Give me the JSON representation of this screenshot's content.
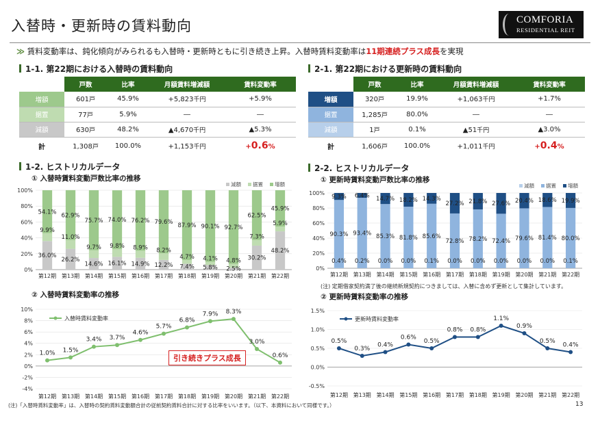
{
  "title": "入替時・更新時の賃料動向",
  "logo": {
    "line1": "COMFORIA",
    "line2": "RESIDENTIAL REIT"
  },
  "summary": {
    "prefix": "賃料変動率は、鈍化傾向がみられるも入替時・更新時ともに引き続き上昇。入替時賃料変動率は",
    "highlight": "11期連続プラス成長",
    "suffix": "を実現"
  },
  "left": {
    "table_title": "1-1. 第22期における入替時の賃料動向",
    "headers": [
      "戸数",
      "比率",
      "月額賃料増減額",
      "賃料変動率"
    ],
    "rows": [
      {
        "label": "増額",
        "units": "601",
        "unit_suffix": "戸",
        "ratio": "45.9%",
        "amount": "+5,823",
        "amount_suffix": "千円",
        "rate": "+5.9%"
      },
      {
        "label": "据置",
        "units": "77",
        "unit_suffix": "戸",
        "ratio": "5.9%",
        "amount": "―",
        "amount_suffix": "",
        "rate": "―"
      },
      {
        "label": "減額",
        "units": "630",
        "unit_suffix": "戸",
        "ratio": "48.2%",
        "amount": "▲4,670",
        "amount_suffix": "千円",
        "rate": "▲5.3%"
      }
    ],
    "total": {
      "label": "計",
      "units": "1,308",
      "unit_suffix": "戸",
      "ratio": "100.0%",
      "amount": "+1,153",
      "amount_suffix": "千円",
      "rate_sign": "+",
      "rate_num": "0.6",
      "rate_pct": "%"
    },
    "history_title": "1-2. ヒストリカルデータ",
    "chart1_title": "① 入替時賃料変動戸数比率の推移",
    "chart2_title": "② 入替時賃料変動率の推移",
    "callout": "引き続きプラス成長",
    "footnote": "(注)「入替時賃料変動率」は、入替時の契約賃料変動額合計の従前契約賃料合計に対する比率をいいます。（以下、本資料において同様です。）"
  },
  "right": {
    "table_title": "2-1. 第22期における更新時の賃料動向",
    "headers": [
      "戸数",
      "比率",
      "月額賃料増減額",
      "賃料変動率"
    ],
    "rows": [
      {
        "label": "増額",
        "units": "320",
        "unit_suffix": "戸",
        "ratio": "19.9%",
        "amount": "+1,063",
        "amount_suffix": "千円",
        "rate": "+1.7%"
      },
      {
        "label": "据置",
        "units": "1,285",
        "unit_suffix": "戸",
        "ratio": "80.0%",
        "amount": "―",
        "amount_suffix": "",
        "rate": "―"
      },
      {
        "label": "減額",
        "units": "1",
        "unit_suffix": "戸",
        "ratio": "0.1%",
        "amount": "▲51",
        "amount_suffix": "千円",
        "rate": "▲3.0%"
      }
    ],
    "total": {
      "label": "計",
      "units": "1,606",
      "unit_suffix": "戸",
      "ratio": "100.0%",
      "amount": "+1,011",
      "amount_suffix": "千円",
      "rate_sign": "+",
      "rate_num": "0.4",
      "rate_pct": "%"
    },
    "history_title": "2-2. ヒストリカルデータ",
    "chart1_title": "① 更新時賃料変動戸数比率の推移",
    "chart1_note": "(注) 定期借家契約満了後の継続新規契約につきましては、入替に含めず更新として集計しています。",
    "chart2_title": "② 更新時賃料変動率の推移"
  },
  "page_number": "13",
  "colors": {
    "green": "#2f6b1f",
    "green_light": "#9dc98c",
    "green_mid": "#bfdcb1",
    "gray": "#c8c8c8",
    "blue": "#1f4f85",
    "blue_light": "#8fb4de",
    "blue_mid": "#b7cfea",
    "red": "#d62020"
  },
  "chart_data": [
    {
      "type": "bar",
      "stacked": true,
      "title": "① 入替時賃料変動戸数比率の推移",
      "categories": [
        "第12期",
        "第13期",
        "第14期",
        "第15期",
        "第16期",
        "第17期",
        "第18期",
        "第19期",
        "第20期",
        "第21期",
        "第22期"
      ],
      "series": [
        {
          "name": "減額",
          "values": [
            36.0,
            26.2,
            14.6,
            16.1,
            14.9,
            12.2,
            7.4,
            5.8,
            2.5,
            30.2,
            48.2
          ],
          "labels": [
            "36.0%",
            "26.2%",
            "14.6%",
            "16.1%",
            "14.9%",
            "12.2%",
            "7.4%",
            "5.8%",
            "2.5%",
            "30.2%",
            "48.2%"
          ]
        },
        {
          "name": "据置",
          "values": [
            9.9,
            11.0,
            9.7,
            9.8,
            8.9,
            8.2,
            4.7,
            4.1,
            4.8,
            7.3,
            5.9
          ],
          "labels": [
            "9.9%",
            "11.0%",
            "9.7%",
            "9.8%",
            "8.9%",
            "8.2%",
            "4.7%",
            "4.1%",
            "4.8%",
            "7.3%",
            "5.9%"
          ]
        },
        {
          "name": "増額",
          "values": [
            54.1,
            62.9,
            75.7,
            74.0,
            76.2,
            79.6,
            87.9,
            90.1,
            92.7,
            62.5,
            45.9
          ],
          "labels": [
            "54.1%",
            "62.9%",
            "75.7%",
            "74.0%",
            "76.2%",
            "79.6%",
            "87.9%",
            "90.1%",
            "92.7%",
            "62.5%",
            "45.9%"
          ]
        }
      ],
      "yticks": [
        "0%",
        "20%",
        "40%",
        "60%",
        "80%",
        "100%"
      ],
      "ylim": [
        0,
        100
      ],
      "legend": [
        "減額",
        "据置",
        "増額"
      ]
    },
    {
      "type": "line",
      "title": "② 入替時賃料変動率の推移",
      "categories": [
        "第12期",
        "第13期",
        "第14期",
        "第15期",
        "第16期",
        "第17期",
        "第18期",
        "第19期",
        "第20期",
        "第21期",
        "第22期"
      ],
      "series": [
        {
          "name": "入替時賃料変動率",
          "values": [
            1.0,
            1.5,
            3.4,
            3.7,
            4.6,
            5.7,
            6.8,
            7.9,
            8.3,
            3.0,
            0.6
          ],
          "labels": [
            "1.0%",
            "1.5%",
            "3.4%",
            "3.7%",
            "4.6%",
            "5.7%",
            "6.8%",
            "7.9%",
            "8.3%",
            "3.0%",
            "0.6%"
          ]
        }
      ],
      "yticks": [
        "10%",
        "8%",
        "6%",
        "4%",
        "2%",
        "0%",
        "-2%",
        "-4%"
      ],
      "ylim": [
        -4,
        10
      ]
    },
    {
      "type": "bar",
      "stacked": true,
      "title": "① 更新時賃料変動戸数比率の推移",
      "categories": [
        "第12期",
        "第13期",
        "第14期",
        "第15期",
        "第16期",
        "第17期",
        "第18期",
        "第19期",
        "第20期",
        "第21期",
        "第22期"
      ],
      "series": [
        {
          "name": "減額",
          "values": [
            0.4,
            0.2,
            0.0,
            0.0,
            0.1,
            0.0,
            0.0,
            0.0,
            0.0,
            0.0,
            0.1
          ],
          "labels": [
            "0.4%",
            "0.2%",
            "0.0%",
            "0.0%",
            "0.1%",
            "0.0%",
            "0.0%",
            "0.0%",
            "0.0%",
            "0.0%",
            "0.1%"
          ]
        },
        {
          "name": "据置",
          "values": [
            90.3,
            93.4,
            85.3,
            81.8,
            85.6,
            72.8,
            78.2,
            72.4,
            79.6,
            81.4,
            80.0
          ],
          "labels": [
            "90.3%",
            "93.4%",
            "85.3%",
            "81.8%",
            "85.6%",
            "72.8%",
            "78.2%",
            "72.4%",
            "79.6%",
            "81.4%",
            "80.0%"
          ]
        },
        {
          "name": "増額",
          "values": [
            9.3,
            6.4,
            14.7,
            18.2,
            14.3,
            27.2,
            21.8,
            27.6,
            20.4,
            18.6,
            19.9
          ],
          "labels": [
            "9.3%",
            "6.4%",
            "14.7%",
            "18.2%",
            "14.3%",
            "27.2%",
            "21.8%",
            "27.6%",
            "20.4%",
            "18.6%",
            "19.9%"
          ]
        }
      ],
      "yticks": [
        "0%",
        "20%",
        "40%",
        "60%",
        "80%",
        "100%"
      ],
      "ylim": [
        0,
        100
      ],
      "legend": [
        "減額",
        "据置",
        "増額"
      ]
    },
    {
      "type": "line",
      "title": "② 更新時賃料変動率の推移",
      "categories": [
        "第12期",
        "第13期",
        "第14期",
        "第15期",
        "第16期",
        "第17期",
        "第18期",
        "第19期",
        "第20期",
        "第21期",
        "第22期"
      ],
      "series": [
        {
          "name": "更新時賃料変動率",
          "values": [
            0.5,
            0.3,
            0.4,
            0.6,
            0.5,
            0.8,
            0.8,
            1.1,
            0.9,
            0.5,
            0.4
          ],
          "labels": [
            "0.5%",
            "0.3%",
            "0.4%",
            "0.6%",
            "0.5%",
            "0.8%",
            "0.8%",
            "1.1%",
            "0.9%",
            "0.5%",
            "0.4%"
          ]
        }
      ],
      "yticks": [
        "1.5%",
        "1.0%",
        "0.5%",
        "0.0%",
        "-0.5%"
      ],
      "ylim": [
        -0.5,
        1.5
      ]
    }
  ]
}
